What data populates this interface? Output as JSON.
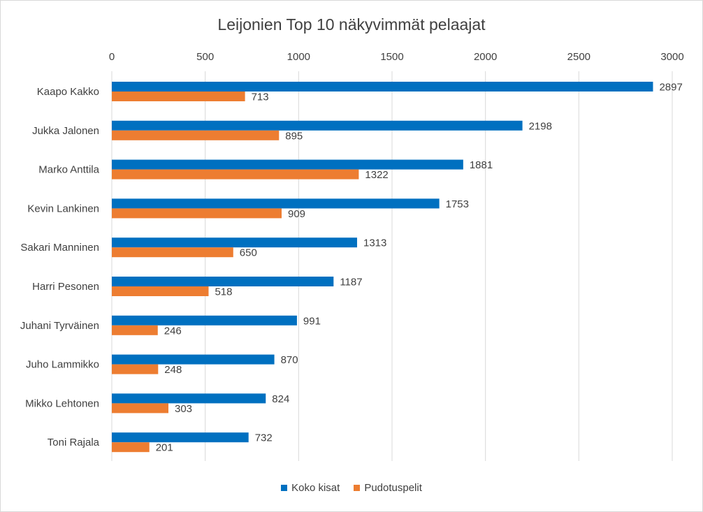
{
  "chart_data": {
    "type": "bar",
    "orientation": "horizontal",
    "title": "Leijonien Top 10 näkyvimmät pelaajat",
    "categories": [
      "Kaapo Kakko",
      "Jukka Jalonen",
      "Marko Anttila",
      "Kevin Lankinen",
      "Sakari Manninen",
      "Harri Pesonen",
      "Juhani Tyrväinen",
      "Juho Lammikko",
      "Mikko Lehtonen",
      "Toni Rajala"
    ],
    "series": [
      {
        "name": "Koko kisat",
        "color": "#0070C0",
        "values": [
          2897,
          2198,
          1881,
          1753,
          1313,
          1187,
          991,
          870,
          824,
          732
        ]
      },
      {
        "name": "Pudotuspelit",
        "color": "#ED7D31",
        "values": [
          713,
          895,
          1322,
          909,
          650,
          518,
          246,
          248,
          303,
          201
        ]
      }
    ],
    "xlim": [
      0,
      3000
    ],
    "xticks": [
      0,
      500,
      1000,
      1500,
      2000,
      2500,
      3000
    ],
    "x_axis_position": "top",
    "grid": true,
    "legend": "bottom",
    "data_labels": true
  }
}
